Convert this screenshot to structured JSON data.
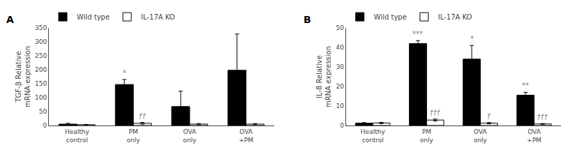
{
  "chart_data": [
    {
      "type": "bar",
      "title": "A",
      "ylabel": "TGF-β Relative\nmRNA expression",
      "categories": [
        "Healthy\ncontrol",
        "PM\nonly",
        "OVA\nonly",
        "OVA\n+PM"
      ],
      "series": [
        {
          "name": "Wild type",
          "color": "#000000",
          "values": [
            5,
            147,
            68,
            198
          ],
          "error": [
            3,
            18,
            55,
            130
          ],
          "annotations": [
            null,
            "*",
            null,
            null
          ]
        },
        {
          "name": "IL-17A KO",
          "color": "#ffffff",
          "values": [
            3,
            8,
            5,
            5
          ],
          "error": [
            1,
            3,
            2,
            2
          ],
          "annotations": [
            null,
            "††",
            null,
            null
          ]
        }
      ],
      "ylim": [
        0,
        350
      ],
      "yticks": [
        0,
        50,
        100,
        150,
        200,
        250,
        300,
        350
      ],
      "grid": false,
      "legend": "upper left"
    },
    {
      "type": "bar",
      "title": "B",
      "ylabel": "IL-8 Relative\nmRNA expression",
      "categories": [
        "Healthy\ncontrol",
        "PM\nonly",
        "OVA\nonly",
        "OVA\n+PM"
      ],
      "series": [
        {
          "name": "Wild type",
          "color": "#000000",
          "values": [
            1.2,
            42,
            34,
            15.5
          ],
          "error": [
            0.3,
            1.5,
            7,
            1.5
          ],
          "annotations": [
            null,
            "***",
            "*",
            "**"
          ]
        },
        {
          "name": "IL-17A KO",
          "color": "#ffffff",
          "values": [
            1.3,
            2.8,
            1.2,
            0.8
          ],
          "error": [
            0.3,
            0.5,
            0.3,
            0.2
          ],
          "annotations": [
            null,
            "†††",
            "†",
            "†††"
          ]
        }
      ],
      "ylim": [
        0,
        50
      ],
      "yticks": [
        0,
        10,
        20,
        30,
        40,
        50
      ],
      "grid": false,
      "legend": "upper left"
    }
  ]
}
